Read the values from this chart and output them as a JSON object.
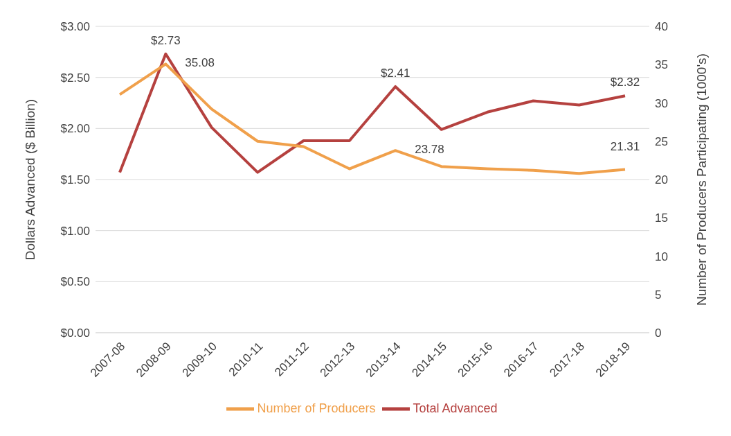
{
  "chart_data": {
    "type": "line",
    "categories": [
      "2007-08",
      "2008-09",
      "2009-10",
      "2010-11",
      "2011-12",
      "2012-13",
      "2013-14",
      "2014-15",
      "2015-16",
      "2016-17",
      "2017-18",
      "2018-19"
    ],
    "series": [
      {
        "name": "Total Advanced",
        "color": "#b5413f",
        "values": [
          1.57,
          2.73,
          2.01,
          1.57,
          1.88,
          1.88,
          2.41,
          1.99,
          2.16,
          2.27,
          2.23,
          2.32
        ],
        "value_labels": [
          null,
          "$2.73",
          null,
          null,
          null,
          null,
          "$2.41",
          null,
          null,
          null,
          null,
          "$2.32"
        ]
      },
      {
        "name": "Number of Producers",
        "color": "#f0a04b",
        "axis": "y2",
        "values": [
          31.1,
          35.08,
          29.2,
          25.0,
          24.3,
          21.4,
          23.78,
          21.7,
          21.4,
          21.2,
          20.8,
          21.31
        ],
        "value_labels": [
          null,
          "35.08",
          null,
          null,
          null,
          null,
          "23.78",
          null,
          null,
          null,
          null,
          "21.31"
        ]
      }
    ],
    "ylabel": "Dollars Advanced ($ Billion)",
    "y2label": "Number of Producers Participating (1000's)",
    "ylim": [
      0,
      3
    ],
    "yticks": [
      {
        "value": 0,
        "label": "$0.00"
      },
      {
        "value": 0.5,
        "label": "$0.50"
      },
      {
        "value": 1,
        "label": "$1.00"
      },
      {
        "value": 1.5,
        "label": "$1.50"
      },
      {
        "value": 2,
        "label": "$2.00"
      },
      {
        "value": 2.5,
        "label": "$2.50"
      },
      {
        "value": 3,
        "label": "$3.00"
      }
    ],
    "y2lim": [
      0,
      40
    ],
    "y2ticks": [
      0,
      5,
      10,
      15,
      20,
      25,
      30,
      35,
      40
    ],
    "grid": "y",
    "legend": "bottom",
    "marker": "none",
    "line_style": "solid"
  }
}
